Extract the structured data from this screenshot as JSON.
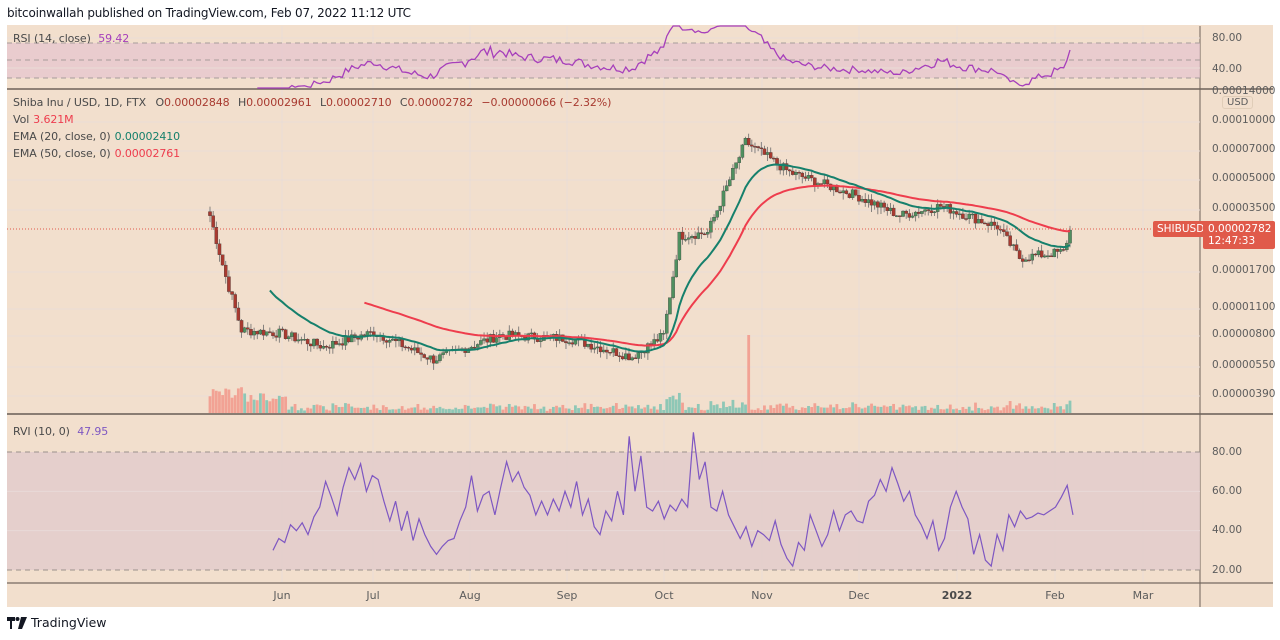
{
  "header": {
    "published": "bitcoinwallah published on TradingView.com, Feb 07, 2022 11:12 UTC"
  },
  "colors": {
    "background": "#f2dfcd",
    "up": "#4f8f5f",
    "down": "#a83a30",
    "ema20": "#16806c",
    "ema50": "#ee3d4d",
    "rsi": "#a63fbb",
    "rvi": "#7e57c2",
    "vol_up": "#8ec7b6",
    "vol_down": "#f2a294",
    "price_tag": "#e05a4a"
  },
  "rsi_pane": {
    "label": "RSI (14, close)",
    "value": "59.42",
    "axis": [
      "80.00",
      "40.00"
    ]
  },
  "main_pane": {
    "symbol_line": "Shiba Inu / USD, 1D, FTX",
    "ohlc": {
      "o_label": "O",
      "o": "0.00002848",
      "h_label": "H",
      "h": "0.00002961",
      "l_label": "L",
      "l": "0.00002710",
      "c_label": "C",
      "c": "0.00002782",
      "change": "−0.00000066 (−2.32%)"
    },
    "vol_label": "Vol",
    "vol_value": "3.621M",
    "ema20_label": "EMA (20, close, 0)",
    "ema20_value": "0.00002410",
    "ema50_label": "EMA (50, close, 0)",
    "ema50_value": "0.00002761",
    "currency": "USD",
    "axis": [
      "0.00014000",
      "0.00010000",
      "0.00007000",
      "0.00005000",
      "0.00003500",
      "0.00001700",
      "0.00001100",
      "0.00000800",
      "0.00000550",
      "0.00000390"
    ],
    "symbol_tag": "SHIBUSD",
    "last_price": "0.00002782",
    "countdown": "12:47:33"
  },
  "rvi_pane": {
    "label": "RVI (10, 0)",
    "value": "47.95",
    "axis": [
      "80.00",
      "60.00",
      "40.00",
      "20.00"
    ]
  },
  "time_axis": [
    "Jun",
    "Jul",
    "Aug",
    "Sep",
    "Oct",
    "Nov",
    "Dec",
    "2022",
    "Feb",
    "Mar"
  ],
  "footer": {
    "brand": "TradingView"
  },
  "chart_data": {
    "type": "candlestick",
    "title": "Shiba Inu / USD, 1D, FTX",
    "x_range": [
      "2021-05-10",
      "2022-02-07"
    ],
    "y_scale": "log",
    "yticks": [
      3.9e-06,
      5.5e-06,
      8e-06,
      1.1e-05,
      1.7e-05,
      3.5e-05,
      5e-05,
      7e-05,
      0.0001,
      0.00014
    ],
    "close_path_approx": [
      {
        "date": "2021-05-10",
        "close": 3.3e-05
      },
      {
        "date": "2021-05-15",
        "close": 1.6e-05
      },
      {
        "date": "2021-05-20",
        "close": 8.5e-06
      },
      {
        "date": "2021-06-01",
        "close": 8.2e-06
      },
      {
        "date": "2021-06-15",
        "close": 7e-06
      },
      {
        "date": "2021-07-01",
        "close": 8.3e-06
      },
      {
        "date": "2021-07-20",
        "close": 6e-06
      },
      {
        "date": "2021-08-10",
        "close": 8e-06
      },
      {
        "date": "2021-09-01",
        "close": 7.7e-06
      },
      {
        "date": "2021-09-21",
        "close": 6.2e-06
      },
      {
        "date": "2021-10-01",
        "close": 8e-06
      },
      {
        "date": "2021-10-06",
        "close": 2.6e-05
      },
      {
        "date": "2021-10-15",
        "close": 2.7e-05
      },
      {
        "date": "2021-10-27",
        "close": 7.9e-05
      },
      {
        "date": "2021-11-10",
        "close": 5.5e-05
      },
      {
        "date": "2021-12-01",
        "close": 4.2e-05
      },
      {
        "date": "2021-12-15",
        "close": 3.3e-05
      },
      {
        "date": "2021-12-28",
        "close": 3.7e-05
      },
      {
        "date": "2022-01-15",
        "close": 2.9e-05
      },
      {
        "date": "2022-01-22",
        "close": 2e-05
      },
      {
        "date": "2022-02-05",
        "close": 2.15e-05
      },
      {
        "date": "2022-02-07",
        "close": 2.782e-05
      }
    ],
    "ema20_last": 2.41e-05,
    "ema50_last": 2.761e-05,
    "rsi": {
      "last": 59.42,
      "bands": [
        30,
        70
      ],
      "axis": [
        40,
        80
      ]
    },
    "rvi": {
      "last": 47.95,
      "bands": [
        20,
        80
      ],
      "axis": [
        20,
        40,
        60,
        80
      ],
      "approx_values": [
        30,
        36,
        34,
        43,
        40,
        44,
        38,
        47,
        52,
        65,
        57,
        48,
        62,
        72,
        66,
        74,
        60,
        68,
        66,
        55,
        45,
        55,
        40,
        50,
        35,
        46,
        38,
        32,
        28,
        32,
        35,
        36,
        45,
        52,
        68,
        50,
        58,
        60,
        48,
        62,
        75,
        65,
        70,
        62,
        58,
        48,
        55,
        48,
        56,
        50,
        60,
        52,
        65,
        48,
        56,
        42,
        38,
        50,
        45,
        60,
        48,
        88,
        60,
        78,
        52,
        50,
        55,
        46,
        53,
        50,
        56,
        52,
        90,
        66,
        75,
        52,
        50,
        60,
        48,
        42,
        36,
        42,
        32,
        40,
        38,
        35,
        45,
        33,
        26,
        22,
        34,
        30,
        48,
        40,
        32,
        38,
        50,
        40,
        48,
        50,
        45,
        44,
        55,
        58,
        66,
        60,
        72,
        64,
        55,
        60,
        48,
        43,
        36,
        45,
        30,
        36,
        52,
        60,
        52,
        46,
        28,
        38,
        25,
        22,
        38,
        30,
        48,
        42,
        50,
        46,
        47,
        49,
        48,
        50,
        52,
        57,
        63,
        48
      ]
    },
    "volume_peak_date": "2021-10-28",
    "time_labels": [
      "Jun",
      "Jul",
      "Aug",
      "Sep",
      "Oct",
      "Nov",
      "Dec",
      "2022",
      "Feb",
      "Mar"
    ]
  }
}
